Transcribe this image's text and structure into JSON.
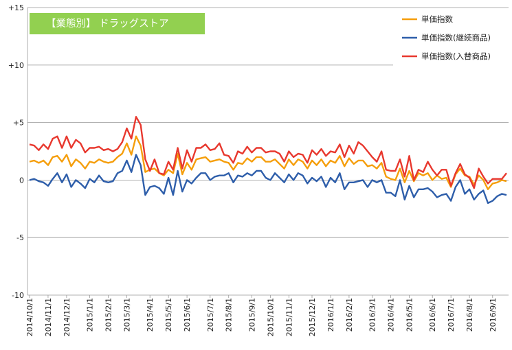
{
  "chart_data": {
    "type": "line",
    "title": "【業態別】 ドラッグストア",
    "title_bg_color": "#92D050",
    "ylim": [
      -10,
      15
    ],
    "y_ticks": [
      15,
      10,
      5,
      0,
      -5,
      -10
    ],
    "y_tick_labels": [
      "+15",
      "+10",
      "+5",
      "0",
      "-5",
      "-10"
    ],
    "grid": "horizontal",
    "legend_position": "top-right",
    "x_tick_labels": [
      "2014/10/1",
      "2014/11/1",
      "2014/12/1",
      "2015/1/1",
      "2015/2/1",
      "2015/3/1",
      "2015/4/1",
      "2015/5/1",
      "2015/6/1",
      "2015/7/1",
      "2015/8/1",
      "2015/9/1",
      "2015/10/1",
      "2015/11/1",
      "2015/12/1",
      "2016/1/1",
      "2016/2/1",
      "2016/3/1",
      "2016/4/1",
      "2016/5/1",
      "2016/6/1",
      "2016/7/1",
      "2016/8/1",
      "2016/9/1"
    ],
    "x_tick_weeks": [
      0,
      4,
      8,
      13,
      17,
      21,
      26,
      30,
      34,
      39,
      43,
      48,
      52,
      56,
      61,
      65,
      69,
      74,
      78,
      82,
      87,
      91,
      95,
      100
    ],
    "series": [
      {
        "name": "単価指数",
        "color": "#F59E0B",
        "values": [
          1.6,
          1.7,
          1.5,
          1.7,
          1.3,
          2.0,
          2.1,
          1.6,
          2.2,
          1.2,
          1.8,
          1.5,
          1.0,
          1.6,
          1.5,
          1.8,
          1.6,
          1.5,
          1.6,
          2.0,
          2.3,
          3.2,
          2.2,
          3.8,
          3.0,
          0.7,
          0.9,
          1.0,
          0.6,
          0.4,
          0.9,
          0.6,
          2.3,
          0.5,
          1.5,
          0.9,
          1.8,
          1.9,
          2.0,
          1.6,
          1.7,
          1.8,
          1.6,
          1.5,
          0.9,
          1.5,
          1.4,
          1.9,
          1.6,
          2.0,
          2.0,
          1.6,
          1.6,
          1.8,
          1.4,
          1.0,
          1.8,
          1.3,
          1.8,
          1.6,
          1.0,
          1.7,
          1.3,
          1.8,
          1.2,
          1.7,
          1.5,
          2.1,
          1.2,
          1.9,
          1.4,
          1.7,
          1.7,
          1.2,
          1.3,
          1.0,
          1.5,
          0.3,
          0.1,
          0.0,
          1.0,
          -0.2,
          0.8,
          -0.1,
          0.6,
          0.4,
          0.6,
          0.0,
          0.4,
          0.1,
          0.2,
          -0.6,
          0.5,
          1.0,
          0.4,
          0.3,
          -0.4,
          0.4,
          0.0,
          -0.8,
          -0.3,
          -0.2,
          0.0,
          -0.1
        ]
      },
      {
        "name": "単価指数(継続商品)",
        "color": "#2E5EAA",
        "values": [
          0.0,
          0.1,
          -0.1,
          -0.2,
          -0.5,
          0.1,
          0.6,
          -0.2,
          0.5,
          -0.6,
          0.0,
          -0.3,
          -0.7,
          0.1,
          -0.2,
          0.4,
          -0.1,
          -0.2,
          -0.1,
          0.6,
          0.8,
          1.7,
          0.7,
          2.2,
          1.3,
          -1.3,
          -0.6,
          -0.5,
          -0.7,
          -1.2,
          0.2,
          -1.3,
          0.8,
          -1.0,
          0.0,
          -0.3,
          0.2,
          0.6,
          0.6,
          0.0,
          0.3,
          0.4,
          0.4,
          0.6,
          -0.2,
          0.4,
          0.3,
          0.6,
          0.4,
          0.8,
          0.8,
          0.2,
          0.0,
          0.6,
          0.2,
          -0.2,
          0.5,
          0.0,
          0.6,
          0.4,
          -0.3,
          0.2,
          -0.1,
          0.3,
          -0.6,
          0.2,
          -0.2,
          0.6,
          -0.8,
          -0.2,
          -0.2,
          -0.1,
          0.0,
          -0.6,
          0.0,
          -0.2,
          0.0,
          -1.1,
          -1.1,
          -1.4,
          0.0,
          -1.7,
          -0.5,
          -1.5,
          -0.8,
          -0.8,
          -0.7,
          -1.0,
          -1.5,
          -1.3,
          -1.2,
          -1.8,
          -0.6,
          0.0,
          -1.2,
          -0.8,
          -1.7,
          -1.2,
          -0.9,
          -2.0,
          -1.8,
          -1.4,
          -1.2,
          -1.3
        ]
      },
      {
        "name": "単価指数(入替商品)",
        "color": "#E8382E",
        "values": [
          3.1,
          3.0,
          2.6,
          3.1,
          2.7,
          3.6,
          3.8,
          2.8,
          3.8,
          2.8,
          3.5,
          3.2,
          2.4,
          2.8,
          2.8,
          2.9,
          2.6,
          2.7,
          2.5,
          2.7,
          3.3,
          4.5,
          3.6,
          5.5,
          4.8,
          1.8,
          0.8,
          1.8,
          0.6,
          0.5,
          1.6,
          0.9,
          2.8,
          1.0,
          2.6,
          1.6,
          2.8,
          2.8,
          3.1,
          2.6,
          2.7,
          3.2,
          2.2,
          2.1,
          1.5,
          2.5,
          2.3,
          2.9,
          2.4,
          2.8,
          2.8,
          2.4,
          2.5,
          2.5,
          2.3,
          1.6,
          2.5,
          2.0,
          2.3,
          2.2,
          1.5,
          2.6,
          2.2,
          2.7,
          2.1,
          2.5,
          2.4,
          3.1,
          2.0,
          3.0,
          2.3,
          3.3,
          3.0,
          2.5,
          2.0,
          1.6,
          2.5,
          0.9,
          0.8,
          0.8,
          1.8,
          0.3,
          2.1,
          0.0,
          0.9,
          0.7,
          1.6,
          0.9,
          0.4,
          0.9,
          0.9,
          -0.5,
          0.6,
          1.4,
          0.5,
          0.2,
          -0.7,
          1.0,
          0.3,
          -0.3,
          0.1,
          0.1,
          0.1,
          0.6
        ]
      }
    ]
  }
}
